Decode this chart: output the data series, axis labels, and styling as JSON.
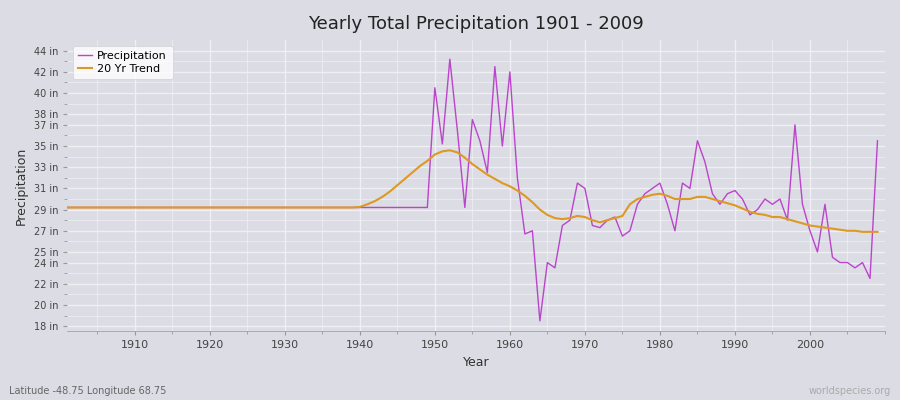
{
  "title": "Yearly Total Precipitation 1901 - 2009",
  "xlabel": "Year",
  "ylabel": "Precipitation",
  "subtitle": "Latitude -48.75 Longitude 68.75",
  "watermark": "worldspecies.org",
  "bg_color": "#dcdce4",
  "plot_bg_color": "#dcdce4",
  "grid_color": "#f0f0f4",
  "precip_color": "#bb44cc",
  "trend_color": "#dd9922",
  "ytick_labels": [
    "18 in",
    "20 in",
    "22 in",
    "24 in",
    "25 in",
    "27 in",
    "29 in",
    "31 in",
    "33 in",
    "35 in",
    "37 in",
    "38 in",
    "40 in",
    "42 in",
    "44 in"
  ],
  "ytick_values": [
    18,
    20,
    22,
    24,
    25,
    27,
    29,
    31,
    33,
    35,
    37,
    38,
    40,
    42,
    44
  ],
  "xtick_values": [
    1910,
    1920,
    1930,
    1940,
    1950,
    1960,
    1970,
    1980,
    1990,
    2000
  ],
  "xlim": [
    1901,
    2010
  ],
  "ylim": [
    17.5,
    45
  ],
  "years": [
    1901,
    1902,
    1903,
    1904,
    1905,
    1906,
    1907,
    1908,
    1909,
    1910,
    1911,
    1912,
    1913,
    1914,
    1915,
    1916,
    1917,
    1918,
    1919,
    1920,
    1921,
    1922,
    1923,
    1924,
    1925,
    1926,
    1927,
    1928,
    1929,
    1930,
    1931,
    1932,
    1933,
    1934,
    1935,
    1936,
    1937,
    1938,
    1939,
    1940,
    1941,
    1942,
    1943,
    1944,
    1945,
    1946,
    1947,
    1948,
    1949,
    1950,
    1951,
    1952,
    1953,
    1954,
    1955,
    1956,
    1957,
    1958,
    1959,
    1960,
    1961,
    1962,
    1963,
    1964,
    1965,
    1966,
    1967,
    1968,
    1969,
    1970,
    1971,
    1972,
    1973,
    1974,
    1975,
    1976,
    1977,
    1978,
    1979,
    1980,
    1981,
    1982,
    1983,
    1984,
    1985,
    1986,
    1987,
    1988,
    1989,
    1990,
    1991,
    1992,
    1993,
    1994,
    1995,
    1996,
    1997,
    1998,
    1999,
    2000,
    2001,
    2002,
    2003,
    2004,
    2005,
    2006,
    2007,
    2008,
    2009
  ],
  "precip": [
    29.2,
    29.2,
    29.2,
    29.2,
    29.2,
    29.2,
    29.2,
    29.2,
    29.2,
    29.2,
    29.2,
    29.2,
    29.2,
    29.2,
    29.2,
    29.2,
    29.2,
    29.2,
    29.2,
    29.2,
    29.2,
    29.2,
    29.2,
    29.2,
    29.2,
    29.2,
    29.2,
    29.2,
    29.2,
    29.2,
    29.2,
    29.2,
    29.2,
    29.2,
    29.2,
    29.2,
    29.2,
    29.2,
    29.2,
    29.2,
    29.2,
    29.2,
    29.2,
    29.2,
    29.2,
    29.2,
    29.2,
    29.2,
    29.2,
    40.5,
    35.2,
    43.2,
    36.5,
    29.2,
    37.5,
    35.5,
    32.5,
    42.5,
    35.0,
    42.0,
    32.0,
    26.7,
    27.0,
    18.5,
    24.0,
    23.5,
    27.5,
    28.0,
    31.5,
    31.0,
    27.5,
    27.3,
    28.0,
    28.3,
    26.5,
    27.0,
    29.5,
    30.5,
    31.0,
    31.5,
    29.5,
    27.0,
    31.5,
    31.0,
    35.5,
    33.5,
    30.5,
    29.5,
    30.5,
    30.8,
    30.0,
    28.5,
    29.0,
    30.0,
    29.5,
    30.0,
    28.0,
    37.0,
    29.5,
    27.0,
    25.0,
    29.5,
    24.5,
    24.0,
    24.0,
    23.5,
    24.0,
    22.5,
    35.5
  ],
  "trend": [
    29.2,
    29.2,
    29.2,
    29.2,
    29.2,
    29.2,
    29.2,
    29.2,
    29.2,
    29.2,
    29.2,
    29.2,
    29.2,
    29.2,
    29.2,
    29.2,
    29.2,
    29.2,
    29.2,
    29.2,
    29.2,
    29.2,
    29.2,
    29.2,
    29.2,
    29.2,
    29.2,
    29.2,
    29.2,
    29.2,
    29.2,
    29.2,
    29.2,
    29.2,
    29.2,
    29.2,
    29.2,
    29.2,
    29.2,
    29.25,
    29.5,
    29.8,
    30.2,
    30.7,
    31.3,
    31.9,
    32.5,
    33.1,
    33.6,
    34.2,
    34.5,
    34.6,
    34.4,
    33.9,
    33.3,
    32.8,
    32.3,
    31.9,
    31.5,
    31.2,
    30.8,
    30.3,
    29.7,
    29.0,
    28.5,
    28.2,
    28.1,
    28.2,
    28.4,
    28.3,
    28.0,
    27.8,
    28.0,
    28.2,
    28.4,
    29.5,
    30.0,
    30.2,
    30.4,
    30.5,
    30.3,
    30.0,
    30.0,
    30.0,
    30.2,
    30.2,
    30.0,
    29.8,
    29.6,
    29.4,
    29.1,
    28.8,
    28.6,
    28.5,
    28.3,
    28.3,
    28.1,
    27.9,
    27.7,
    27.5,
    27.4,
    27.3,
    27.2,
    27.1,
    27.0,
    27.0,
    26.9,
    26.9,
    26.9
  ]
}
